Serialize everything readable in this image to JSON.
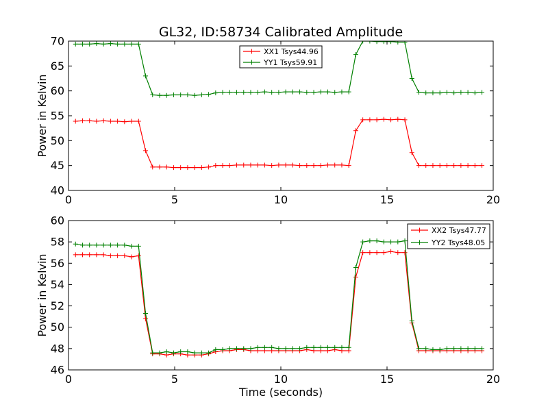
{
  "title": "GL32, ID:58734 Calibrated Amplitude",
  "colors": {
    "xx": "#ff0000",
    "yy": "#008000"
  },
  "chart_data": [
    {
      "type": "line",
      "xlabel": "",
      "ylabel": "Power in Kelvin",
      "xlim": [
        0,
        20
      ],
      "ylim": [
        40,
        70
      ],
      "xticks": [
        0,
        5,
        10,
        15,
        20
      ],
      "yticks": [
        40,
        45,
        50,
        55,
        60,
        65,
        70
      ],
      "legend_position": "top-center",
      "grid": false,
      "x": [
        0.33,
        0.66,
        0.99,
        1.32,
        1.65,
        1.98,
        2.31,
        2.64,
        2.97,
        3.3,
        3.63,
        3.96,
        4.29,
        4.62,
        4.95,
        5.28,
        5.61,
        5.94,
        6.27,
        6.6,
        6.93,
        7.26,
        7.59,
        7.92,
        8.25,
        8.58,
        8.91,
        9.24,
        9.57,
        9.9,
        10.23,
        10.56,
        10.89,
        11.22,
        11.55,
        11.88,
        12.21,
        12.54,
        12.87,
        13.2,
        13.53,
        13.86,
        14.19,
        14.52,
        14.85,
        15.18,
        15.51,
        15.84,
        16.17,
        16.5,
        16.83,
        17.16,
        17.49,
        17.82,
        18.15,
        18.48,
        18.81,
        19.14,
        19.47
      ],
      "series": [
        {
          "name": "XX1 Tsys44.96",
          "color": "#ff0000",
          "values": [
            53.9,
            54.0,
            54.0,
            53.9,
            54.0,
            53.9,
            53.9,
            53.8,
            53.9,
            53.9,
            48.0,
            44.7,
            44.7,
            44.7,
            44.6,
            44.6,
            44.6,
            44.6,
            44.6,
            44.7,
            45.0,
            45.0,
            45.0,
            45.1,
            45.1,
            45.1,
            45.1,
            45.1,
            45.0,
            45.1,
            45.1,
            45.1,
            45.0,
            45.0,
            45.0,
            45.0,
            45.1,
            45.1,
            45.1,
            45.0,
            52.0,
            54.2,
            54.2,
            54.2,
            54.3,
            54.2,
            54.3,
            54.2,
            47.6,
            45.0,
            45.0,
            45.0,
            45.0,
            45.0,
            45.0,
            45.0,
            45.0,
            45.0,
            45.0
          ]
        },
        {
          "name": "YY1 Tsys59.91",
          "color": "#008000",
          "values": [
            69.4,
            69.4,
            69.4,
            69.5,
            69.4,
            69.5,
            69.4,
            69.4,
            69.4,
            69.4,
            63.0,
            59.2,
            59.1,
            59.1,
            59.2,
            59.2,
            59.2,
            59.1,
            59.2,
            59.3,
            59.6,
            59.7,
            59.7,
            59.7,
            59.7,
            59.7,
            59.7,
            59.8,
            59.7,
            59.7,
            59.8,
            59.8,
            59.8,
            59.7,
            59.7,
            59.8,
            59.8,
            59.7,
            59.8,
            59.8,
            67.3,
            70.0,
            70.0,
            69.9,
            69.9,
            69.9,
            69.8,
            69.8,
            62.5,
            59.7,
            59.6,
            59.6,
            59.6,
            59.7,
            59.6,
            59.7,
            59.7,
            59.6,
            59.7
          ]
        }
      ]
    },
    {
      "type": "line",
      "xlabel": "Time (seconds)",
      "ylabel": "Power in Kelvin",
      "xlim": [
        0,
        20
      ],
      "ylim": [
        46,
        60
      ],
      "xticks": [
        0,
        5,
        10,
        15,
        20
      ],
      "yticks": [
        46,
        48,
        50,
        52,
        54,
        56,
        58,
        60
      ],
      "legend_position": "top-right",
      "grid": false,
      "x": [
        0.33,
        0.66,
        0.99,
        1.32,
        1.65,
        1.98,
        2.31,
        2.64,
        2.97,
        3.3,
        3.63,
        3.96,
        4.29,
        4.62,
        4.95,
        5.28,
        5.61,
        5.94,
        6.27,
        6.6,
        6.93,
        7.26,
        7.59,
        7.92,
        8.25,
        8.58,
        8.91,
        9.24,
        9.57,
        9.9,
        10.23,
        10.56,
        10.89,
        11.22,
        11.55,
        11.88,
        12.21,
        12.54,
        12.87,
        13.2,
        13.53,
        13.86,
        14.19,
        14.52,
        14.85,
        15.18,
        15.51,
        15.84,
        16.17,
        16.5,
        16.83,
        17.16,
        17.49,
        17.82,
        18.15,
        18.48,
        18.81,
        19.14,
        19.47
      ],
      "series": [
        {
          "name": "XX2 Tsys47.77",
          "color": "#ff0000",
          "values": [
            56.8,
            56.8,
            56.8,
            56.8,
            56.8,
            56.7,
            56.7,
            56.7,
            56.6,
            56.7,
            50.8,
            47.5,
            47.5,
            47.4,
            47.5,
            47.5,
            47.4,
            47.4,
            47.4,
            47.5,
            47.7,
            47.8,
            47.8,
            47.9,
            47.9,
            47.8,
            47.8,
            47.8,
            47.8,
            47.8,
            47.8,
            47.8,
            47.8,
            47.9,
            47.8,
            47.8,
            47.8,
            47.9,
            47.8,
            47.8,
            54.7,
            57.0,
            57.0,
            57.0,
            57.0,
            57.1,
            57.0,
            57.0,
            50.4,
            47.8,
            47.8,
            47.8,
            47.8,
            47.8,
            47.8,
            47.8,
            47.8,
            47.8,
            47.8
          ]
        },
        {
          "name": "YY2 Tsys48.05",
          "color": "#008000",
          "values": [
            57.8,
            57.7,
            57.7,
            57.7,
            57.7,
            57.7,
            57.7,
            57.7,
            57.6,
            57.6,
            51.3,
            47.6,
            47.6,
            47.7,
            47.6,
            47.7,
            47.7,
            47.6,
            47.6,
            47.6,
            47.9,
            47.9,
            48.0,
            48.0,
            48.0,
            48.0,
            48.1,
            48.1,
            48.1,
            48.0,
            48.0,
            48.0,
            48.0,
            48.1,
            48.1,
            48.1,
            48.1,
            48.1,
            48.1,
            48.1,
            55.6,
            58.0,
            58.1,
            58.1,
            58.0,
            58.0,
            58.0,
            58.1,
            50.6,
            48.0,
            48.0,
            47.9,
            47.9,
            48.0,
            48.0,
            48.0,
            48.0,
            48.0,
            48.0
          ]
        }
      ]
    }
  ]
}
